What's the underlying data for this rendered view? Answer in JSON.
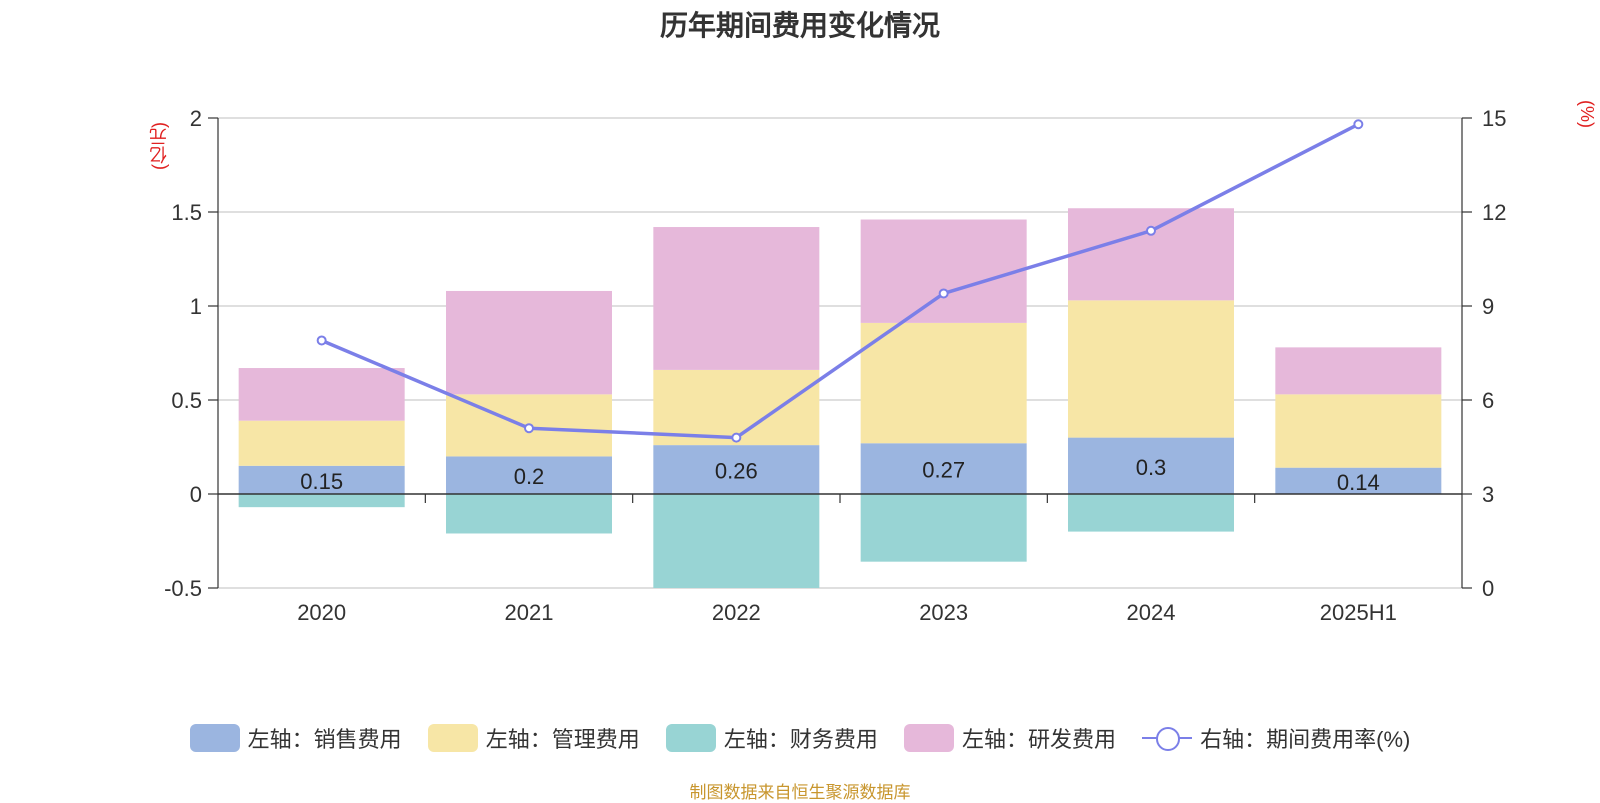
{
  "colors": {
    "sales": "#9bb5e0",
    "admin": "#f7e6a6",
    "finance": "#98d4d4",
    "rnd": "#e6b8da",
    "rate": "#7b7fe8",
    "unit": "#e02020",
    "source": "#c8962e"
  },
  "chart_data": {
    "type": "bar",
    "stacked": true,
    "title": "历年期间费用变化情况",
    "categories": [
      "2020",
      "2021",
      "2022",
      "2023",
      "2024",
      "2025H1"
    ],
    "left_axis": {
      "unit": "(亿元)",
      "ylim": [
        -0.5,
        2
      ],
      "ticks": [
        "-0.5",
        "0",
        "0.5",
        "1",
        "1.5",
        "2"
      ]
    },
    "right_axis": {
      "unit": "(%)",
      "ylim": [
        0,
        15
      ],
      "ticks": [
        "0",
        "3",
        "6",
        "9",
        "12",
        "15"
      ]
    },
    "series": [
      {
        "name": "左轴：销售费用",
        "key": "sales",
        "values": [
          0.15,
          0.2,
          0.26,
          0.27,
          0.3,
          0.14
        ],
        "labels": [
          "0.15",
          "0.2",
          "0.26",
          "0.27",
          "0.3",
          "0.14"
        ]
      },
      {
        "name": "左轴：管理费用",
        "key": "admin",
        "values": [
          0.24,
          0.33,
          0.4,
          0.64,
          0.73,
          0.39
        ]
      },
      {
        "name": "左轴：财务费用",
        "key": "finance",
        "values": [
          -0.07,
          -0.21,
          -0.5,
          -0.36,
          -0.2,
          0
        ]
      },
      {
        "name": "左轴：研发费用",
        "key": "rnd",
        "values": [
          0.28,
          0.55,
          0.76,
          0.55,
          0.49,
          0.25
        ]
      }
    ],
    "line_series": {
      "name": "右轴：期间费用率(%)",
      "key": "rate",
      "axis": "right",
      "values": [
        7.9,
        5.1,
        4.8,
        9.4,
        11.4,
        14.8
      ]
    },
    "grid": true,
    "legend": "bottom"
  },
  "source_note": "制图数据来自恒生聚源数据库"
}
